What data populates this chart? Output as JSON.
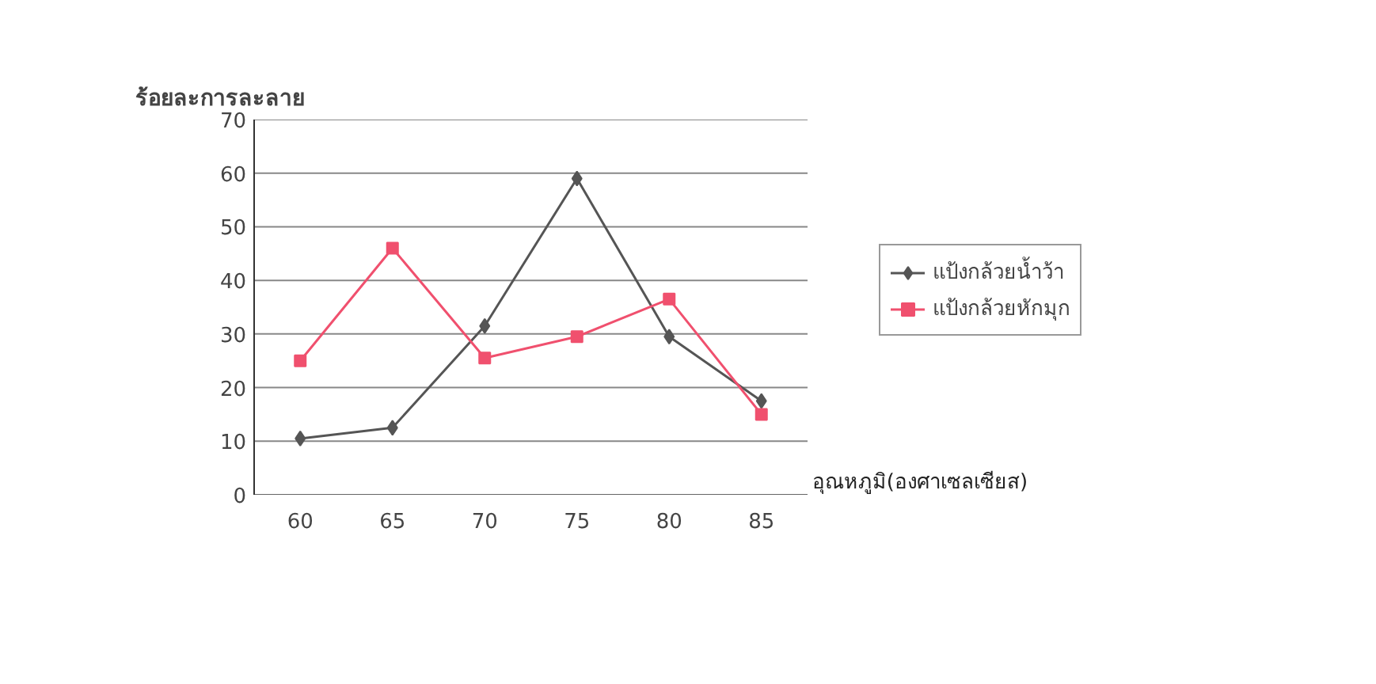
{
  "chart_data": {
    "type": "line",
    "ylabel": "ร้อยละการละลาย",
    "xlabel": "อุณหภูมิ(องศาเซลเซียส)",
    "categories": [
      "60",
      "65",
      "70",
      "75",
      "80",
      "85"
    ],
    "series": [
      {
        "name": "แป้งกล้วยน้ำว้า",
        "color": "#555555",
        "marker": "diamond",
        "values": [
          10.5,
          12.5,
          31.5,
          59,
          29.5,
          17.5
        ]
      },
      {
        "name": "แป้งกล้วยหักมุก",
        "color": "#f0506e",
        "marker": "square",
        "values": [
          25,
          46,
          25.5,
          29.5,
          36.5,
          15
        ]
      }
    ],
    "ylim": [
      0,
      70
    ],
    "yticks": [
      0,
      10,
      20,
      30,
      40,
      50,
      60,
      70
    ],
    "grid": "y",
    "legend": "right",
    "line_style": "solid"
  }
}
